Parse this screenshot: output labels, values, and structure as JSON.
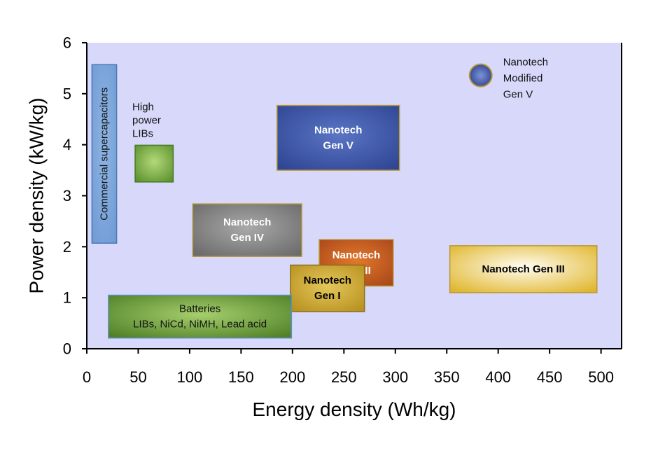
{
  "chart_data": {
    "type": "range-box",
    "title": "",
    "xlabel": "Energy density (Wh/kg)",
    "ylabel": "Power density (kW/kg)",
    "xlim": [
      0,
      520
    ],
    "ylim": [
      0,
      6
    ],
    "xticks": [
      0,
      50,
      100,
      150,
      200,
      250,
      300,
      350,
      400,
      450,
      500
    ],
    "yticks": [
      0,
      1,
      2,
      3,
      4,
      5,
      6
    ],
    "plot_background": "#d8d8fb",
    "grid": false,
    "legend": "none",
    "regions": [
      {
        "name": "Commercial supercapacitors",
        "lines": [
          "Commercial supercapacitors"
        ],
        "label_rotated": true,
        "x": [
          5,
          29
        ],
        "y": [
          2.07,
          5.57
        ],
        "fill": "#6f9bd4",
        "fill_light": "#8fb4e3",
        "stroke": "#4d79b5",
        "text_color": "#1a1a1a"
      },
      {
        "name": "High power LIBs",
        "lines": [
          "High",
          "power",
          "LIBs"
        ],
        "label_outside": true,
        "x": [
          47,
          84
        ],
        "y": [
          3.27,
          3.99
        ],
        "fill": "#5a8f2c",
        "fill_light": "#b3d97a",
        "stroke": "#4a7a24",
        "text_color": "#111111"
      },
      {
        "name": "Nanotech Gen V",
        "lines": [
          "Nanotech",
          "Gen V"
        ],
        "x": [
          185,
          304
        ],
        "y": [
          3.5,
          4.77
        ],
        "fill": "#2e4593",
        "fill_light": "#5b75c4",
        "stroke": "#b89836",
        "text_color": "#ffffff"
      },
      {
        "name": "Nanotech Gen IV",
        "lines": [
          "Nanotech",
          "Gen IV"
        ],
        "x": [
          103,
          209
        ],
        "y": [
          1.81,
          2.84
        ],
        "fill": "#6a6a6a",
        "fill_light": "#a9a9a9",
        "stroke": "#b89836",
        "text_color": "#ffffff"
      },
      {
        "name": "Nanotech Gen II",
        "lines": [
          "Nanotech",
          "Gen II"
        ],
        "x": [
          226,
          298
        ],
        "y": [
          1.23,
          2.14
        ],
        "fill": "#a9471a",
        "fill_light": "#e2782c",
        "stroke": "#b89836",
        "text_color": "#ffffff"
      },
      {
        "name": "Nanotech Gen I",
        "lines": [
          "Nanotech",
          "Gen I"
        ],
        "x": [
          198,
          270
        ],
        "y": [
          0.73,
          1.64
        ],
        "fill": "#b7901f",
        "fill_light": "#e4c75a",
        "stroke": "#8a6e1a",
        "text_color": "#000000"
      },
      {
        "name": "Nanotech Gen III",
        "lines": [
          "Nanotech Gen III"
        ],
        "x": [
          353,
          496
        ],
        "y": [
          1.1,
          2.02
        ],
        "fill": "#e0b52a",
        "fill_light": "#fffdf2",
        "stroke": "#b89836",
        "text_color": "#000000"
      },
      {
        "name": "Batteries",
        "lines": [
          "Batteries",
          "LIBs, NiCd, NiMH, Lead acid"
        ],
        "plain_text": true,
        "x": [
          21,
          199
        ],
        "y": [
          0.21,
          1.05
        ],
        "fill": "#4f7f26",
        "fill_light": "#a6cf6d",
        "stroke": "#5e8fc9",
        "text_color": "#111111"
      }
    ],
    "points": [
      {
        "name": "Nanotech Modified Gen V",
        "lines": [
          "Nanotech",
          "Modified",
          "Gen V"
        ],
        "x": 383,
        "y": 5.36,
        "fill": "#2b3f8c",
        "fill_light": "#7d93d6",
        "stroke": "#b89836",
        "text_color": "#111111"
      }
    ]
  }
}
